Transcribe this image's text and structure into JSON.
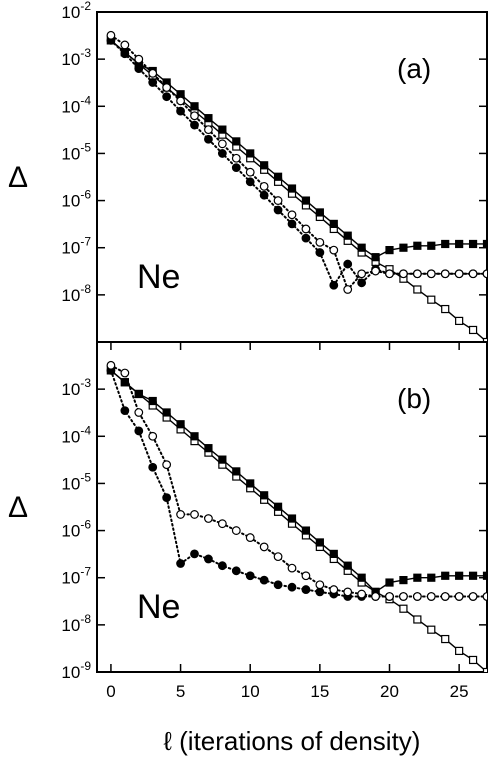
{
  "chart_data": [
    {
      "type": "line",
      "annotation": "(a)",
      "label": "Ne",
      "ylabel": "Δ",
      "log_y": true,
      "grid": false,
      "x": [
        0,
        1,
        2,
        3,
        4,
        5,
        6,
        7,
        8,
        9,
        10,
        11,
        12,
        13,
        14,
        15,
        16,
        17,
        18,
        19,
        20,
        21,
        22,
        23,
        24,
        25,
        26,
        27
      ],
      "xlim": [
        -1,
        27
      ],
      "ylim": [
        1e-09,
        0.01
      ],
      "yticks": [
        {
          "value": 1e-08,
          "label": "10-8"
        },
        {
          "value": 1e-07,
          "label": "10-7"
        },
        {
          "value": 1e-06,
          "label": "10-6"
        },
        {
          "value": 1e-05,
          "label": "10-5"
        },
        {
          "value": 0.0001,
          "label": "10-4"
        },
        {
          "value": 0.001,
          "label": "10-3"
        },
        {
          "value": 0.01,
          "label": "10-2"
        }
      ],
      "series": [
        {
          "color": "#000000",
          "marker": "square",
          "filled": false,
          "linestyle": "solid",
          "values": [
            0.0025,
            0.0014,
            0.00079,
            0.00045,
            0.00025,
            0.00014,
            7.9e-05,
            4.5e-05,
            2.5e-05,
            1.4e-05,
            7.9e-06,
            4.5e-06,
            2.5e-06,
            1.4e-06,
            7.9e-07,
            4.5e-07,
            2.5e-07,
            1.4e-07,
            7.9e-08,
            5e-08,
            3.5e-08,
            2.2e-08,
            1.3e-08,
            7.9e-09,
            5e-09,
            2.8e-09,
            1.8e-09,
            1e-09
          ]
        },
        {
          "color": "#000000",
          "marker": "square",
          "filled": true,
          "linestyle": "solid",
          "values": [
            0.0025,
            0.0014,
            0.00079,
            0.00056,
            0.00032,
            0.00018,
            0.0001,
            5.6e-05,
            3.2e-05,
            1.8e-05,
            1e-05,
            5.6e-06,
            3.2e-06,
            1.8e-06,
            1e-06,
            5.6e-07,
            3.2e-07,
            1.8e-07,
            1e-07,
            6.3e-08,
            8.9e-08,
            1e-07,
            1.1e-07,
            1.1e-07,
            1.2e-07,
            1.2e-07,
            1.2e-07,
            1.2e-07
          ]
        },
        {
          "color": "#000000",
          "marker": "circle",
          "filled": true,
          "linestyle": "dotted",
          "values": [
            0.0025,
            0.0013,
            0.00063,
            0.00032,
            0.00016,
            7.9e-05,
            4e-05,
            2e-05,
            1e-05,
            5e-06,
            2.5e-06,
            1.3e-06,
            6.3e-07,
            3.2e-07,
            1.6e-07,
            7.9e-08,
            1.6e-08,
            4.5e-08,
            1.8e-08,
            3.5e-08,
            2.8e-08,
            2.8e-08,
            2.8e-08,
            2.8e-08,
            2.8e-08,
            2.8e-08,
            2.8e-08,
            2.8e-08
          ]
        },
        {
          "color": "#000000",
          "marker": "circle",
          "filled": false,
          "linestyle": "dotted",
          "values": [
            0.0032,
            0.002,
            0.001,
            0.0005,
            0.00025,
            0.00013,
            6.3e-05,
            3.2e-05,
            1.6e-05,
            7.9e-06,
            4e-06,
            2e-06,
            1e-06,
            5e-07,
            2.5e-07,
            1.3e-07,
            8.9e-08,
            1.3e-08,
            2.8e-08,
            3.2e-08,
            2.8e-08,
            2.8e-08,
            2.8e-08,
            2.8e-08,
            2.8e-08,
            2.8e-08,
            2.8e-08,
            2.8e-08
          ]
        }
      ]
    },
    {
      "type": "line",
      "annotation": "(b)",
      "label": "Ne",
      "ylabel": "Δ",
      "log_y": true,
      "grid": false,
      "xlabel": "ℓ  (iterations of density)",
      "x": [
        0,
        1,
        2,
        3,
        4,
        5,
        6,
        7,
        8,
        9,
        10,
        11,
        12,
        13,
        14,
        15,
        16,
        17,
        18,
        19,
        20,
        21,
        22,
        23,
        24,
        25,
        26,
        27
      ],
      "xlim": [
        -1,
        27
      ],
      "xticks": [
        0,
        5,
        10,
        15,
        20,
        25
      ],
      "ylim": [
        1e-09,
        0.01
      ],
      "yticks": [
        {
          "value": 1e-09,
          "label": "10-9"
        },
        {
          "value": 1e-08,
          "label": "10-8"
        },
        {
          "value": 1e-07,
          "label": "10-7"
        },
        {
          "value": 1e-06,
          "label": "10-6"
        },
        {
          "value": 1e-05,
          "label": "10-5"
        },
        {
          "value": 0.0001,
          "label": "10-4"
        },
        {
          "value": 0.001,
          "label": "10-3"
        }
      ],
      "series": [
        {
          "color": "#000000",
          "marker": "square",
          "filled": false,
          "linestyle": "solid",
          "values": [
            0.0025,
            0.0014,
            0.00079,
            0.00045,
            0.00025,
            0.00014,
            7.9e-05,
            4.5e-05,
            2.5e-05,
            1.4e-05,
            7.9e-06,
            4.5e-06,
            2.5e-06,
            1.4e-06,
            7.9e-07,
            4.5e-07,
            2.5e-07,
            1.4e-07,
            7.9e-08,
            5e-08,
            3.5e-08,
            2.2e-08,
            1.3e-08,
            7.9e-09,
            5e-09,
            2.8e-09,
            1.8e-09,
            1e-09
          ]
        },
        {
          "color": "#000000",
          "marker": "square",
          "filled": true,
          "linestyle": "solid",
          "values": [
            0.0025,
            0.0014,
            0.00079,
            0.00056,
            0.00032,
            0.00018,
            0.0001,
            5.6e-05,
            3.2e-05,
            1.8e-05,
            1e-05,
            5.6e-06,
            3.2e-06,
            1.8e-06,
            1e-06,
            5.6e-07,
            3.2e-07,
            1.8e-07,
            1e-07,
            5e-08,
            7.9e-08,
            8.9e-08,
            1e-07,
            1e-07,
            1.1e-07,
            1.1e-07,
            1.1e-07,
            1.1e-07
          ]
        },
        {
          "color": "#000000",
          "marker": "circle",
          "filled": true,
          "linestyle": "dotted",
          "values": [
            0.0025,
            0.00035,
            0.00013,
            2.2e-05,
            5e-06,
            2e-07,
            3.2e-07,
            2.5e-07,
            1.8e-07,
            1.4e-07,
            1.1e-07,
            8.9e-08,
            7.1e-08,
            6.3e-08,
            5.6e-08,
            5e-08,
            4.5e-08,
            4e-08,
            4e-08,
            4e-08,
            4e-08,
            4e-08,
            4e-08,
            4e-08,
            4e-08,
            4e-08,
            4e-08,
            4e-08
          ]
        },
        {
          "color": "#000000",
          "marker": "circle",
          "filled": false,
          "linestyle": "dotted",
          "values": [
            0.0032,
            0.0022,
            0.00032,
            0.0001,
            2.5e-05,
            2.2e-06,
            2.2e-06,
            1.8e-06,
            1.4e-06,
            1e-06,
            7.1e-07,
            4.5e-07,
            2.8e-07,
            1.6e-07,
            1.1e-07,
            7.1e-08,
            5.6e-08,
            5e-08,
            4.5e-08,
            4e-08,
            4e-08,
            4e-08,
            4e-08,
            4e-08,
            4e-08,
            4e-08,
            4e-08,
            4e-08
          ]
        }
      ]
    }
  ]
}
